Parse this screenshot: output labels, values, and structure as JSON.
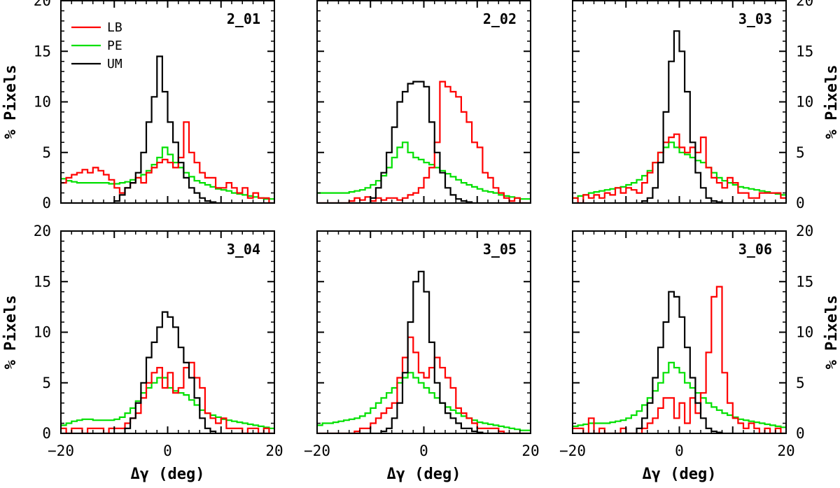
{
  "chart_data": {
    "type": "histogram_grid",
    "xlabel": "Δγ (deg)",
    "ylabel": "% Pixels",
    "xlim": [
      -20,
      20
    ],
    "ylim": [
      0,
      20
    ],
    "xticks": [
      -20,
      0,
      20
    ],
    "yticks": [
      0,
      5,
      10,
      15,
      20
    ],
    "series_meta": [
      {
        "name": "LB",
        "color": "#ff0000"
      },
      {
        "name": "PE",
        "color": "#00e000"
      },
      {
        "name": "UM",
        "color": "#000000"
      }
    ],
    "panels": [
      {
        "label": "2_01",
        "bin_edges": [
          -20,
          -19,
          -18,
          -17,
          -16,
          -15,
          -14,
          -13,
          -12,
          -11,
          -10,
          -9,
          -8,
          -7,
          -6,
          -5,
          -4,
          -3,
          -2,
          -1,
          0,
          1,
          2,
          3,
          4,
          5,
          6,
          7,
          8,
          9,
          10,
          11,
          12,
          13,
          14,
          15,
          16,
          17,
          18,
          19,
          20
        ],
        "series": [
          {
            "name": "LB",
            "values": [
              2.0,
              2.5,
              2.8,
              3.0,
              3.3,
              3.0,
              3.5,
              3.2,
              2.8,
              2.3,
              1.5,
              1.0,
              1.5,
              2.0,
              2.5,
              2.0,
              3.0,
              3.5,
              4.0,
              4.3,
              4.0,
              3.5,
              4.5,
              8.0,
              5.0,
              4.0,
              3.0,
              2.5,
              2.5,
              1.5,
              1.5,
              2.0,
              1.5,
              1.0,
              1.5,
              0.5,
              1.0,
              0.5,
              0.5,
              0.0
            ]
          },
          {
            "name": "PE",
            "values": [
              2.4,
              2.2,
              2.1,
              2.0,
              2.0,
              2.0,
              2.0,
              2.0,
              2.0,
              1.9,
              1.9,
              2.0,
              2.1,
              2.3,
              2.5,
              2.8,
              3.2,
              3.8,
              4.5,
              5.5,
              4.8,
              4.0,
              3.5,
              3.0,
              2.6,
              2.2,
              2.0,
              1.8,
              1.6,
              1.4,
              1.3,
              1.2,
              1.0,
              0.9,
              0.8,
              0.7,
              0.6,
              0.5,
              0.4,
              0.4
            ]
          },
          {
            "name": "UM",
            "values": [
              0.0,
              0.0,
              0.0,
              0.0,
              0.0,
              0.0,
              0.0,
              0.0,
              0.0,
              0.0,
              0.2,
              0.8,
              1.5,
              2.0,
              3.0,
              5.0,
              8.0,
              10.5,
              14.5,
              11.0,
              8.0,
              6.0,
              4.0,
              2.5,
              1.5,
              1.0,
              0.5,
              0.2,
              0.1,
              0.0,
              0.0,
              0.0,
              0.0,
              0.0,
              0.0,
              0.0,
              0.0,
              0.0,
              0.0,
              0.0
            ]
          }
        ]
      },
      {
        "label": "2_02",
        "bin_edges": [
          -20,
          -19,
          -18,
          -17,
          -16,
          -15,
          -14,
          -13,
          -12,
          -11,
          -10,
          -9,
          -8,
          -7,
          -6,
          -5,
          -4,
          -3,
          -2,
          -1,
          0,
          1,
          2,
          3,
          4,
          5,
          6,
          7,
          8,
          9,
          10,
          11,
          12,
          13,
          14,
          15,
          16,
          17,
          18,
          19,
          20
        ],
        "series": [
          {
            "name": "LB",
            "values": [
              0.0,
              0.0,
              0.0,
              0.0,
              0.0,
              0.0,
              0.2,
              0.5,
              0.3,
              0.6,
              0.2,
              0.5,
              0.3,
              0.5,
              0.5,
              0.3,
              0.5,
              0.8,
              1.0,
              1.5,
              2.5,
              3.5,
              6.0,
              12.0,
              11.5,
              11.0,
              10.5,
              9.0,
              8.0,
              6.0,
              5.5,
              3.0,
              2.5,
              1.5,
              1.0,
              0.5,
              0.2,
              0.5,
              0.0,
              0.0
            ]
          },
          {
            "name": "PE",
            "values": [
              1.0,
              1.0,
              1.0,
              1.0,
              1.0,
              1.0,
              1.1,
              1.2,
              1.3,
              1.5,
              1.8,
              2.2,
              2.7,
              3.5,
              4.5,
              5.5,
              6.0,
              5.0,
              4.5,
              4.3,
              4.0,
              3.8,
              3.5,
              3.2,
              2.9,
              2.6,
              2.3,
              2.0,
              1.8,
              1.6,
              1.4,
              1.2,
              1.1,
              1.0,
              0.8,
              0.7,
              0.6,
              0.5,
              0.4,
              0.4
            ]
          },
          {
            "name": "UM",
            "values": [
              0.0,
              0.0,
              0.0,
              0.0,
              0.0,
              0.0,
              0.0,
              0.0,
              0.0,
              0.0,
              0.5,
              1.5,
              3.0,
              5.0,
              7.5,
              10.0,
              11.0,
              11.8,
              12.0,
              12.0,
              11.5,
              8.0,
              5.0,
              3.0,
              1.5,
              0.8,
              0.4,
              0.2,
              0.1,
              0.0,
              0.0,
              0.0,
              0.0,
              0.0,
              0.0,
              0.0,
              0.0,
              0.0,
              0.0,
              0.0
            ]
          }
        ]
      },
      {
        "label": "3_03",
        "bin_edges": [
          -20,
          -19,
          -18,
          -17,
          -16,
          -15,
          -14,
          -13,
          -12,
          -11,
          -10,
          -9,
          -8,
          -7,
          -6,
          -5,
          -4,
          -3,
          -2,
          -1,
          0,
          1,
          2,
          3,
          4,
          5,
          6,
          7,
          8,
          9,
          10,
          11,
          12,
          13,
          14,
          15,
          16,
          17,
          18,
          19,
          20
        ],
        "series": [
          {
            "name": "LB",
            "values": [
              0.5,
              0.0,
              0.8,
              0.5,
              0.8,
              0.5,
              1.0,
              0.8,
              1.5,
              1.0,
              1.5,
              1.3,
              1.0,
              2.0,
              3.0,
              4.0,
              5.0,
              6.0,
              6.5,
              6.8,
              5.5,
              5.0,
              5.5,
              5.0,
              6.5,
              3.5,
              2.5,
              2.0,
              1.5,
              2.5,
              2.0,
              1.0,
              1.0,
              0.5,
              0.5,
              1.0,
              1.0,
              1.0,
              1.0,
              0.5
            ]
          },
          {
            "name": "PE",
            "values": [
              0.5,
              0.7,
              0.8,
              1.0,
              1.1,
              1.2,
              1.3,
              1.4,
              1.5,
              1.6,
              1.8,
              2.0,
              2.3,
              2.7,
              3.2,
              4.0,
              5.0,
              5.5,
              6.0,
              5.5,
              5.0,
              4.8,
              4.5,
              4.2,
              4.0,
              3.5,
              3.0,
              2.5,
              2.2,
              2.0,
              1.8,
              1.6,
              1.5,
              1.4,
              1.3,
              1.2,
              1.1,
              1.0,
              0.9,
              0.8
            ]
          },
          {
            "name": "UM",
            "values": [
              0.0,
              0.0,
              0.0,
              0.0,
              0.0,
              0.0,
              0.0,
              0.0,
              0.0,
              0.0,
              0.0,
              0.0,
              0.0,
              0.2,
              0.5,
              1.5,
              4.0,
              9.0,
              14.0,
              17.0,
              15.0,
              11.0,
              6.0,
              3.0,
              1.5,
              0.5,
              0.2,
              0.1,
              0.0,
              0.0,
              0.0,
              0.0,
              0.0,
              0.0,
              0.0,
              0.0,
              0.0,
              0.0,
              0.0,
              0.0
            ]
          }
        ]
      },
      {
        "label": "3_04",
        "bin_edges": [
          -20,
          -19,
          -18,
          -17,
          -16,
          -15,
          -14,
          -13,
          -12,
          -11,
          -10,
          -9,
          -8,
          -7,
          -6,
          -5,
          -4,
          -3,
          -2,
          -1,
          0,
          1,
          2,
          3,
          4,
          5,
          6,
          7,
          8,
          9,
          10,
          11,
          12,
          13,
          14,
          15,
          16,
          17,
          18,
          19,
          20
        ],
        "series": [
          {
            "name": "LB",
            "values": [
              0.5,
              0.0,
              0.5,
              0.5,
              0.0,
              0.5,
              0.5,
              0.5,
              0.0,
              0.5,
              0.5,
              0.5,
              1.0,
              1.5,
              2.0,
              3.5,
              5.0,
              6.0,
              6.5,
              4.5,
              6.0,
              4.0,
              4.5,
              6.5,
              7.0,
              5.5,
              4.5,
              2.0,
              1.5,
              1.0,
              1.5,
              0.5,
              0.5,
              0.5,
              0.0,
              0.5,
              0.5,
              0.0,
              0.5,
              0.0
            ]
          },
          {
            "name": "PE",
            "values": [
              0.8,
              1.0,
              1.2,
              1.3,
              1.4,
              1.4,
              1.3,
              1.3,
              1.3,
              1.3,
              1.4,
              1.6,
              2.0,
              2.5,
              3.2,
              4.0,
              4.5,
              5.0,
              5.5,
              5.5,
              4.5,
              4.2,
              4.0,
              3.8,
              3.3,
              2.8,
              2.3,
              2.0,
              1.8,
              1.6,
              1.4,
              1.3,
              1.2,
              1.1,
              1.0,
              0.9,
              0.8,
              0.7,
              0.6,
              0.5
            ]
          },
          {
            "name": "UM",
            "values": [
              0.0,
              0.0,
              0.0,
              0.0,
              0.0,
              0.0,
              0.0,
              0.0,
              0.0,
              0.0,
              0.0,
              0.0,
              0.5,
              1.5,
              3.0,
              5.0,
              7.5,
              9.0,
              10.5,
              12.0,
              11.5,
              10.5,
              8.5,
              7.0,
              5.5,
              3.5,
              1.5,
              0.5,
              0.2,
              0.0,
              0.0,
              0.0,
              0.0,
              0.0,
              0.0,
              0.0,
              0.0,
              0.0,
              0.0,
              0.0
            ]
          }
        ]
      },
      {
        "label": "3_05",
        "bin_edges": [
          -20,
          -19,
          -18,
          -17,
          -16,
          -15,
          -14,
          -13,
          -12,
          -11,
          -10,
          -9,
          -8,
          -7,
          -6,
          -5,
          -4,
          -3,
          -2,
          -1,
          0,
          1,
          2,
          3,
          4,
          5,
          6,
          7,
          8,
          9,
          10,
          11,
          12,
          13,
          14,
          15,
          16,
          17,
          18,
          19,
          20
        ],
        "series": [
          {
            "name": "LB",
            "values": [
              0.0,
              0.0,
              0.0,
              0.0,
              0.0,
              0.0,
              0.0,
              0.2,
              0.5,
              0.5,
              1.0,
              1.5,
              2.0,
              2.5,
              3.0,
              5.5,
              7.5,
              9.5,
              8.0,
              6.0,
              5.5,
              6.5,
              7.5,
              6.5,
              5.5,
              4.5,
              2.5,
              2.0,
              1.5,
              1.0,
              0.5,
              0.5,
              0.5,
              0.5,
              0.2,
              0.0,
              0.0,
              0.0,
              0.0,
              0.0
            ]
          },
          {
            "name": "PE",
            "values": [
              0.8,
              1.0,
              1.0,
              1.1,
              1.2,
              1.3,
              1.4,
              1.5,
              1.7,
              2.0,
              2.5,
              3.0,
              3.5,
              4.0,
              4.5,
              5.0,
              5.5,
              6.0,
              5.5,
              5.0,
              4.5,
              4.0,
              3.5,
              3.0,
              2.6,
              2.3,
              2.0,
              1.7,
              1.5,
              1.3,
              1.1,
              1.0,
              0.9,
              0.8,
              0.7,
              0.6,
              0.5,
              0.4,
              0.3,
              0.3
            ]
          },
          {
            "name": "UM",
            "values": [
              0.0,
              0.0,
              0.0,
              0.0,
              0.0,
              0.0,
              0.0,
              0.0,
              0.0,
              0.0,
              0.0,
              0.0,
              0.2,
              0.5,
              1.5,
              3.0,
              6.0,
              11.0,
              15.0,
              16.0,
              14.0,
              9.0,
              5.0,
              3.0,
              2.0,
              1.5,
              1.0,
              0.5,
              0.5,
              0.2,
              0.1,
              0.0,
              0.0,
              0.0,
              0.0,
              0.0,
              0.0,
              0.0,
              0.0,
              0.0
            ]
          }
        ]
      },
      {
        "label": "3_06",
        "bin_edges": [
          -20,
          -19,
          -18,
          -17,
          -16,
          -15,
          -14,
          -13,
          -12,
          -11,
          -10,
          -9,
          -8,
          -7,
          -6,
          -5,
          -4,
          -3,
          -2,
          -1,
          0,
          1,
          2,
          3,
          4,
          5,
          6,
          7,
          8,
          9,
          10,
          11,
          12,
          13,
          14,
          15,
          16,
          17,
          18,
          19,
          20
        ],
        "series": [
          {
            "name": "LB",
            "values": [
              0.5,
              0.5,
              0.0,
              1.5,
              0.0,
              0.5,
              0.0,
              0.0,
              0.0,
              0.5,
              0.0,
              0.0,
              0.0,
              0.5,
              1.0,
              1.5,
              2.5,
              3.5,
              3.5,
              1.5,
              3.0,
              1.0,
              3.5,
              2.0,
              4.0,
              8.0,
              13.5,
              14.5,
              6.0,
              3.0,
              1.5,
              1.0,
              0.5,
              1.0,
              0.5,
              0.0,
              0.5,
              0.0,
              0.5,
              0.0
            ]
          },
          {
            "name": "PE",
            "values": [
              0.7,
              0.8,
              0.9,
              1.0,
              1.0,
              1.0,
              1.0,
              1.1,
              1.2,
              1.3,
              1.5,
              1.8,
              2.2,
              2.8,
              3.5,
              4.2,
              5.0,
              6.0,
              7.0,
              6.5,
              6.0,
              5.0,
              4.5,
              4.0,
              3.5,
              3.0,
              2.6,
              2.3,
              2.0,
              1.8,
              1.6,
              1.4,
              1.3,
              1.2,
              1.1,
              1.0,
              0.9,
              0.8,
              0.7,
              0.6
            ]
          },
          {
            "name": "UM",
            "values": [
              0.0,
              0.0,
              0.0,
              0.0,
              0.0,
              0.0,
              0.0,
              0.0,
              0.0,
              0.0,
              0.0,
              0.0,
              0.5,
              1.5,
              3.0,
              5.5,
              8.5,
              11.0,
              14.0,
              13.5,
              11.5,
              8.5,
              5.5,
              3.0,
              1.5,
              0.5,
              0.2,
              0.1,
              0.0,
              0.0,
              0.0,
              0.0,
              0.0,
              0.0,
              0.0,
              0.0,
              0.0,
              0.0,
              0.0,
              0.0
            ]
          }
        ]
      }
    ]
  }
}
